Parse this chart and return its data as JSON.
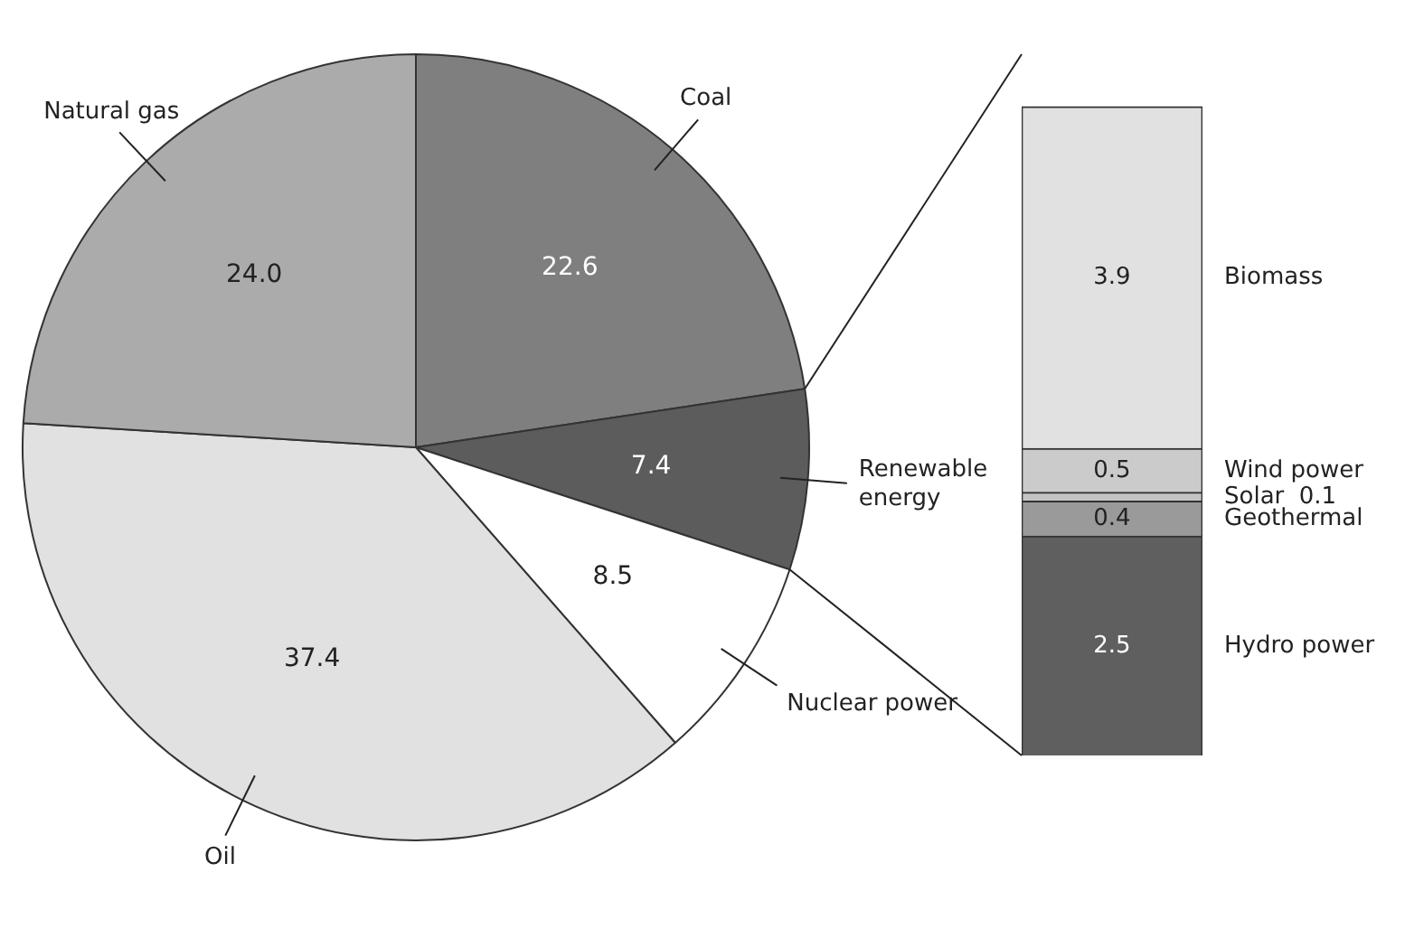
{
  "chart_data": [
    {
      "type": "pie",
      "categories": [
        "Coal",
        "Renewable energy",
        "Nuclear power",
        "Oil",
        "Natural gas"
      ],
      "values": [
        22.6,
        7.4,
        8.5,
        37.4,
        24.0
      ],
      "colors": [
        "#7f7f7f",
        "#5c5c5c",
        "#ffffff",
        "#e1e1e1",
        "#ababab"
      ],
      "value_labels": [
        "22.6",
        "7.4",
        "8.5",
        "37.4",
        "24.0"
      ],
      "legend": false
    },
    {
      "type": "bar",
      "stacked": true,
      "categories": [
        null
      ],
      "series": [
        {
          "name": "Hydro power",
          "color": "#5f5f5f",
          "values": [
            2.5
          ],
          "value_labels": [
            "2.5"
          ]
        },
        {
          "name": "Geothermal",
          "color": "#9a9a9a",
          "values": [
            0.4
          ],
          "value_labels": [
            "0.4"
          ]
        },
        {
          "name": "Solar",
          "color": "#c4c4c4",
          "values": [
            0.1
          ],
          "value_labels": [
            "0.1"
          ]
        },
        {
          "name": "Wind power",
          "color": "#cbcbcb",
          "values": [
            0.5
          ],
          "value_labels": [
            "0.5"
          ]
        },
        {
          "name": "Biomass",
          "color": "#e1e1e1",
          "values": [
            3.9
          ],
          "value_labels": [
            "3.9"
          ]
        }
      ],
      "legend": false
    }
  ]
}
